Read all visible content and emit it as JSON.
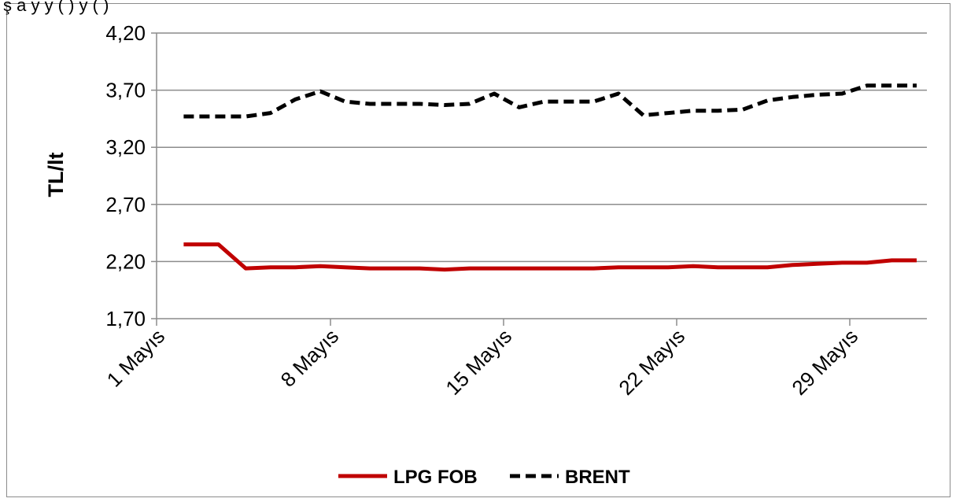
{
  "header": {
    "partial_caption": "ş     a   y      y                            (    )      y   (     )"
  },
  "chart_data": {
    "type": "line",
    "ylabel": "TL/lt",
    "ylim": [
      1.7,
      4.2
    ],
    "yticks": [
      "4,20",
      "3,70",
      "3,20",
      "2,70",
      "2,20",
      "1,70"
    ],
    "ytick_values": [
      4.2,
      3.7,
      3.2,
      2.7,
      2.2,
      1.7
    ],
    "x_start_day": 1,
    "x_end_day": 31,
    "xticks": [
      {
        "day": 1,
        "label": "1 Mayıs"
      },
      {
        "day": 8,
        "label": "8 Mayıs"
      },
      {
        "day": 15,
        "label": "15 Mayıs"
      },
      {
        "day": 22,
        "label": "22 Mayıs"
      },
      {
        "day": 29,
        "label": "29 Mayıs"
      }
    ],
    "grid": true,
    "legend_position": "bottom",
    "series": [
      {
        "name": "LPG FOB",
        "color": "#c00000",
        "style": "solid",
        "x": [
          1.5,
          2.9,
          4,
          5,
          6,
          7,
          8,
          9,
          10,
          11,
          12,
          13,
          14,
          15,
          16,
          17,
          18,
          19,
          20,
          21,
          22,
          23,
          24,
          25,
          26,
          27,
          28,
          29,
          30,
          31
        ],
        "y": [
          2.35,
          2.35,
          2.14,
          2.15,
          2.15,
          2.16,
          2.15,
          2.14,
          2.14,
          2.14,
          2.13,
          2.14,
          2.14,
          2.14,
          2.14,
          2.14,
          2.14,
          2.15,
          2.15,
          2.15,
          2.16,
          2.15,
          2.15,
          2.15,
          2.17,
          2.18,
          2.19,
          2.19,
          2.21,
          2.21
        ]
      },
      {
        "name": "BRENT",
        "color": "#000000",
        "style": "dashed",
        "x": [
          1.5,
          2.9,
          4,
          5,
          6,
          7,
          8,
          9,
          10,
          11,
          12,
          13,
          14,
          15,
          16,
          17,
          18,
          19,
          20,
          21,
          22,
          23,
          24,
          25,
          26,
          27,
          28,
          29,
          30,
          31
        ],
        "y": [
          3.47,
          3.47,
          3.47,
          3.5,
          3.62,
          3.69,
          3.6,
          3.58,
          3.58,
          3.58,
          3.57,
          3.58,
          3.67,
          3.55,
          3.6,
          3.6,
          3.6,
          3.67,
          3.48,
          3.5,
          3.52,
          3.52,
          3.53,
          3.61,
          3.64,
          3.66,
          3.67,
          3.74,
          3.74,
          3.74
        ]
      }
    ]
  }
}
